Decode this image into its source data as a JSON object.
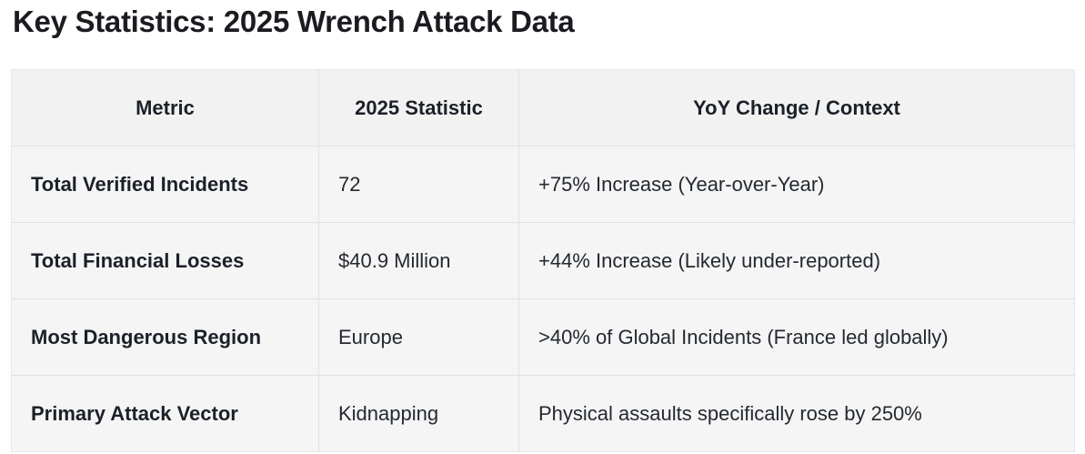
{
  "chart_data": {
    "type": "table",
    "title": "Key Statistics: 2025 Wrench Attack Data",
    "columns": [
      "Metric",
      "2025 Statistic",
      "YoY Change / Context"
    ],
    "rows": [
      [
        "Total Verified Incidents",
        "72",
        "+75% Increase (Year-over-Year)"
      ],
      [
        "Total Financial Losses",
        "$40.9 Million",
        "+44% Increase (Likely under-reported)"
      ],
      [
        "Most Dangerous Region",
        "Europe",
        ">40% of Global Incidents (France led globally)"
      ],
      [
        "Primary Attack Vector",
        "Kidnapping",
        "Physical assaults specifically rose by 250%"
      ]
    ],
    "layout_hints": {
      "header_row": true,
      "first_column_bold": true,
      "header_alignment": "center",
      "body_alignment": "left"
    }
  },
  "theme": {
    "title_color": "#1a1c20",
    "header_bg": "#f2f2f3",
    "row_bg": "#f5f5f6",
    "inner_border": "#e1e1e3",
    "outer_border": "#e7e7e9",
    "header_color": "#1c2128",
    "cell_color": "#24292f",
    "page_bg": "#ffffff"
  }
}
